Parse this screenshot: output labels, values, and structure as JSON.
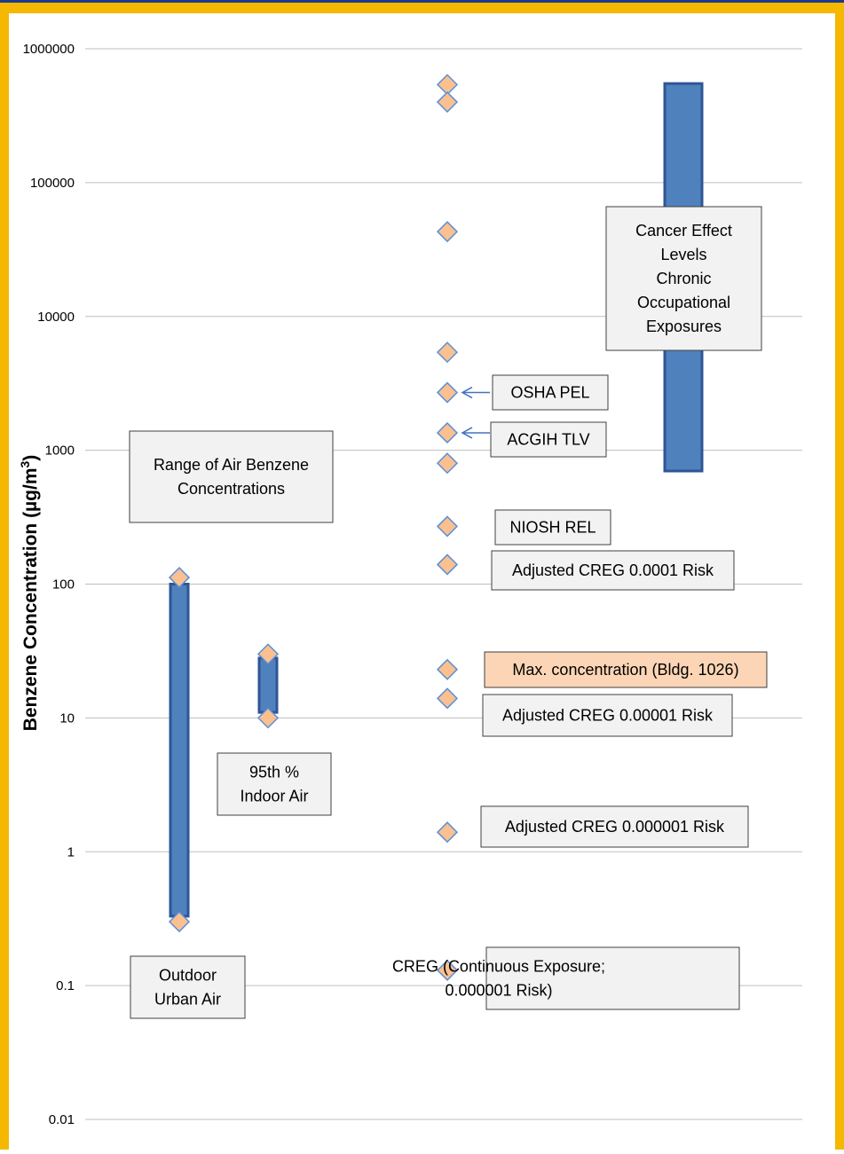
{
  "colors": {
    "frame_outer": "#f5b800",
    "frame_inner": "#1a3a8a",
    "bar_fill": "#4f81bd",
    "bar_stroke": "#2f5597",
    "marker_fill": "#fac090",
    "marker_stroke": "#5b8fd6",
    "grid": "#bfbfbf",
    "highlight_box": "#fbd5b5"
  },
  "chart_data": {
    "type": "scatter",
    "yscale": "log",
    "ylim": [
      0.01,
      1000000
    ],
    "grid": "horizontal",
    "ylabel": "Benzene Concentration (µg/m³)",
    "ylabel_parts": {
      "main": "Benzene Concentration (",
      "unit": "µg/m",
      "sup": "3",
      "close": ")"
    },
    "yticks": [
      {
        "value": 1000000,
        "label": "1000000"
      },
      {
        "value": 100000,
        "label": "100000"
      },
      {
        "value": 10000,
        "label": "10000"
      },
      {
        "value": 1000,
        "label": "1000"
      },
      {
        "value": 100,
        "label": "100"
      },
      {
        "value": 10,
        "label": "10"
      },
      {
        "value": 1,
        "label": "1"
      },
      {
        "value": 0.1,
        "label": "0.1"
      },
      {
        "value": 0.01,
        "label": "0.01"
      }
    ],
    "ranges": [
      {
        "name": "outdoor-urban-air-range",
        "x": 1,
        "low": 0.33,
        "high": 100,
        "width": "wide"
      },
      {
        "name": "indoor-air-range",
        "x": 2,
        "low": 11,
        "high": 28,
        "width": "wide"
      },
      {
        "name": "cancer-effect-range",
        "x": 4,
        "low": 700,
        "high": 550000,
        "width": "wider"
      }
    ],
    "points": [
      {
        "x": 1,
        "y": 112
      },
      {
        "x": 1,
        "y": 0.3
      },
      {
        "x": 2,
        "y": 30
      },
      {
        "x": 2,
        "y": 10
      },
      {
        "x": 3,
        "y": 540000
      },
      {
        "x": 3,
        "y": 400000
      },
      {
        "x": 3,
        "y": 43000
      },
      {
        "x": 3,
        "y": 5400
      },
      {
        "x": 3,
        "y": 2700
      },
      {
        "x": 3,
        "y": 1350
      },
      {
        "x": 3,
        "y": 800
      },
      {
        "x": 3,
        "y": 270
      },
      {
        "x": 3,
        "y": 140
      },
      {
        "x": 3,
        "y": 23
      },
      {
        "x": 3,
        "y": 14
      },
      {
        "x": 3,
        "y": 1.4
      },
      {
        "x": 3,
        "y": 0.13
      }
    ],
    "annotations": [
      {
        "name": "range-air-benzene-label",
        "lines": [
          "Range of  Air Benzene",
          "Concentrations"
        ],
        "style": "gray"
      },
      {
        "name": "indoor-air-label",
        "lines": [
          "95th %",
          "Indoor Air"
        ],
        "style": "gray"
      },
      {
        "name": "outdoor-urban-air-label",
        "lines": [
          "Outdoor",
          "Urban Air"
        ],
        "style": "gray"
      },
      {
        "name": "cancer-effect-label",
        "lines": [
          "Cancer Effect",
          "Levels",
          "Chronic",
          "Occupational",
          "Exposures"
        ],
        "style": "gray"
      },
      {
        "name": "osha-pel-label",
        "lines": [
          "OSHA PEL"
        ],
        "style": "gray"
      },
      {
        "name": "acgih-tlv-label",
        "lines": [
          "ACGIH TLV"
        ],
        "style": "gray"
      },
      {
        "name": "niosh-rel-label",
        "lines": [
          "NIOSH REL"
        ],
        "style": "gray"
      },
      {
        "name": "creg-0001-label",
        "lines": [
          "Adjusted CREG 0.0001 Risk"
        ],
        "style": "gray"
      },
      {
        "name": "max-concentration-label",
        "lines": [
          "Max. concentration (Bldg. 1026)"
        ],
        "style": "orange"
      },
      {
        "name": "creg-00001-label",
        "lines": [
          "Adjusted CREG 0.00001 Risk"
        ],
        "style": "gray"
      },
      {
        "name": "creg-000001-label",
        "lines": [
          "Adjusted CREG 0.000001 Risk"
        ],
        "style": "gray"
      },
      {
        "name": "creg-continuous-label",
        "lines": [
          "CREG (Continuous Exposure;",
          "0.000001 Risk)"
        ],
        "style": "gray"
      }
    ]
  }
}
